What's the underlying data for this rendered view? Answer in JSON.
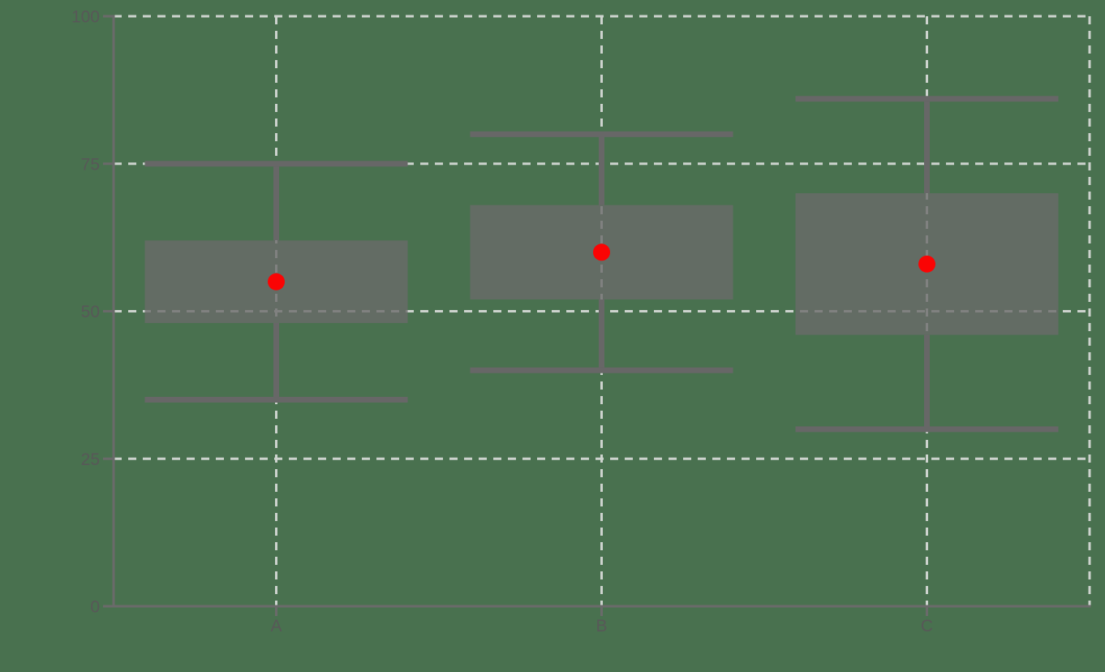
{
  "figure": {
    "background_color": "#49714f"
  },
  "chart_data": {
    "type": "boxplot",
    "title": "",
    "xlabel": "",
    "ylabel": "",
    "categories": [
      "A",
      "B",
      "C"
    ],
    "boxes": [
      {
        "category": "A",
        "whisker_low": 35,
        "box_low": 48,
        "mean": 55,
        "box_high": 62,
        "whisker_high": 75
      },
      {
        "category": "B",
        "whisker_low": 40,
        "box_low": 52,
        "mean": 60,
        "box_high": 68,
        "whisker_high": 80
      },
      {
        "category": "C",
        "whisker_low": 30,
        "box_low": 46,
        "mean": 58,
        "box_high": 70,
        "whisker_high": 86
      }
    ],
    "mean_marker": "red-dot",
    "ylim": [
      0,
      100
    ],
    "yticks": [
      0,
      25,
      50,
      75,
      100
    ],
    "ytick_labels": [
      "0",
      "25",
      "50",
      "75",
      "100"
    ],
    "grid": {
      "visible": true,
      "style": "dashed",
      "horizontal_at": [
        25,
        50,
        75,
        100
      ],
      "vertical_at_category_centers": true,
      "right_edge_dashed_line": true
    },
    "legend": {
      "visible": false
    },
    "colors": {
      "background": "#49714f",
      "box_fill": "#6a6a6a",
      "box_fill_opacity": 0.78,
      "whisker": "#676767",
      "grid_line": "#cdd3ce",
      "axis_line": "#6a6a6a",
      "tick_label": "#585858",
      "mean_dot": "#fa0404"
    }
  }
}
